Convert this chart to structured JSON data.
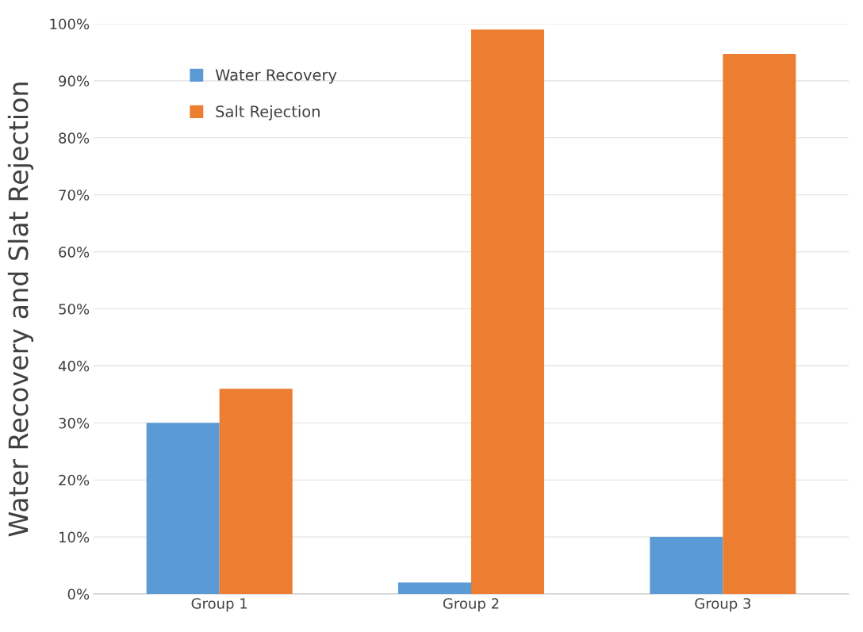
{
  "chart_data": {
    "type": "bar",
    "ylabel": "Water Recovery and Slat Rejection",
    "categories": [
      "Group 1",
      "Group 2",
      "Group 3"
    ],
    "series": [
      {
        "name": "Water Recovery",
        "color": "#5b9bd5",
        "values": [
          30,
          2,
          10
        ]
      },
      {
        "name": "Salt Rejection",
        "color": "#ed7d31",
        "values": [
          36,
          99,
          94.7
        ]
      }
    ],
    "ylim": [
      0,
      100
    ],
    "yticks": [
      {
        "value": 0,
        "label": "0%"
      },
      {
        "value": 10,
        "label": "10%"
      },
      {
        "value": 20,
        "label": "20%"
      },
      {
        "value": 30,
        "label": "30%"
      },
      {
        "value": 40,
        "label": "40%"
      },
      {
        "value": 50,
        "label": "50%"
      },
      {
        "value": 60,
        "label": "60%"
      },
      {
        "value": 70,
        "label": "70%"
      },
      {
        "value": 80,
        "label": "80%"
      },
      {
        "value": 90,
        "label": "90%"
      },
      {
        "value": 100,
        "label": "100%"
      }
    ],
    "grid": "y",
    "legend": "top left"
  }
}
